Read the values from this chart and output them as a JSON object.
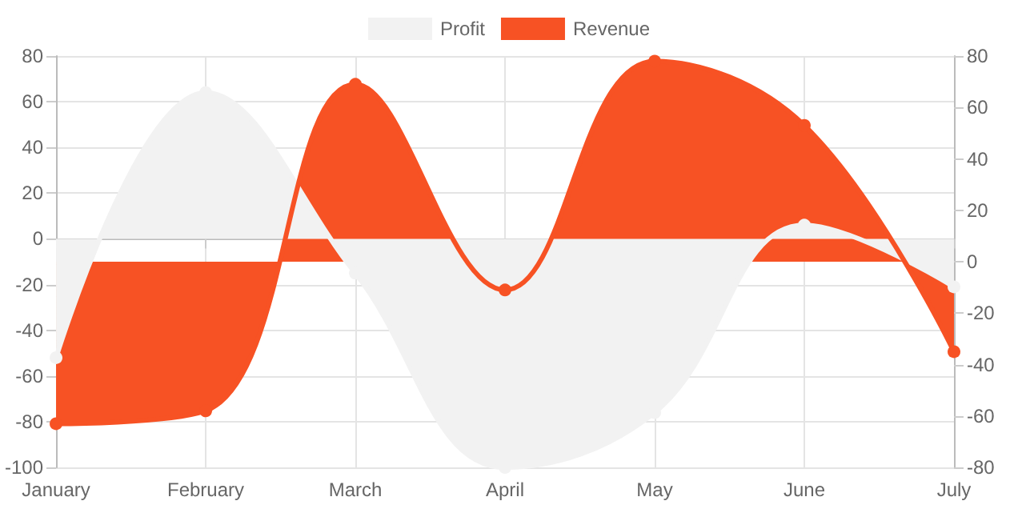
{
  "chart_data": {
    "type": "area",
    "categories": [
      "January",
      "February",
      "March",
      "April",
      "May",
      "June",
      "July"
    ],
    "series": [
      {
        "name": "Profit",
        "color": "#f2f2f2",
        "values": [
          -52,
          64,
          -15,
          -100,
          -76,
          6,
          -21
        ]
      },
      {
        "name": "Revenue",
        "color": "#f75224",
        "axis": "y2",
        "values": [
          -63,
          -58,
          69,
          -11,
          78,
          53,
          -35
        ]
      }
    ],
    "ylim": [
      -100,
      80
    ],
    "yticks": [
      -100,
      -80,
      -60,
      -40,
      -20,
      0,
      20,
      40,
      60,
      80
    ],
    "y2lim": [
      -80,
      80
    ],
    "y2ticks": [
      -80,
      -60,
      -40,
      -20,
      0,
      20,
      40,
      60,
      80
    ],
    "grid": true,
    "legend": "top",
    "marker": "circle"
  }
}
